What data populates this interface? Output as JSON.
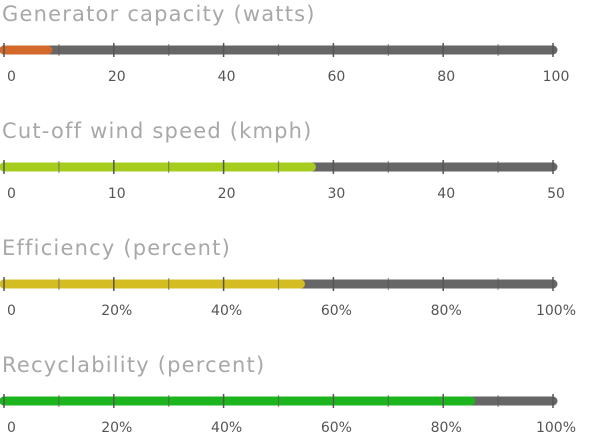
{
  "chart_data": [
    {
      "type": "bar",
      "orientation": "horizontal",
      "title": "Generator capacity (watts)",
      "values": [
        8
      ],
      "color": "#d2692a",
      "track_color": "#666666",
      "xlim": [
        0,
        100
      ],
      "xticks": [
        0,
        20,
        40,
        60,
        80,
        100
      ],
      "minor_xticks": [
        10,
        30,
        50,
        70,
        90
      ]
    },
    {
      "type": "bar",
      "orientation": "horizontal",
      "title": "Cut-off wind speed (kmph)",
      "values": [
        28
      ],
      "color": "#a6cc1e",
      "track_color": "#666666",
      "xlim": [
        0,
        50
      ],
      "xticks": [
        0,
        10,
        20,
        30,
        40,
        50
      ],
      "minor_xticks": [
        5,
        15,
        25,
        35,
        45
      ]
    },
    {
      "type": "bar",
      "orientation": "horizontal",
      "title": "Efficiency (percent)",
      "values": [
        54
      ],
      "color": "#d4bd22",
      "track_color": "#666666",
      "xlim": [
        0,
        100
      ],
      "xticks": [
        0,
        {
          "value": 20,
          "label": "20%"
        },
        {
          "value": 40,
          "label": "40%"
        },
        {
          "value": 60,
          "label": "60%"
        },
        {
          "value": 80,
          "label": "80%"
        },
        {
          "value": 100,
          "label": "100%"
        }
      ],
      "minor_xticks": [
        10,
        30,
        50,
        70,
        90
      ]
    },
    {
      "type": "bar",
      "orientation": "horizontal",
      "title": "Recyclability (percent)",
      "values": [
        85
      ],
      "color": "#1db51d",
      "track_color": "#666666",
      "xlim": [
        0,
        100
      ],
      "xticks": [
        0,
        {
          "value": 20,
          "label": "20%"
        },
        {
          "value": 40,
          "label": "40%"
        },
        {
          "value": 60,
          "label": "60%"
        },
        {
          "value": 80,
          "label": "80%"
        },
        {
          "value": 100,
          "label": "100%"
        }
      ],
      "minor_xticks": [
        10,
        30,
        50,
        70,
        90
      ]
    }
  ]
}
